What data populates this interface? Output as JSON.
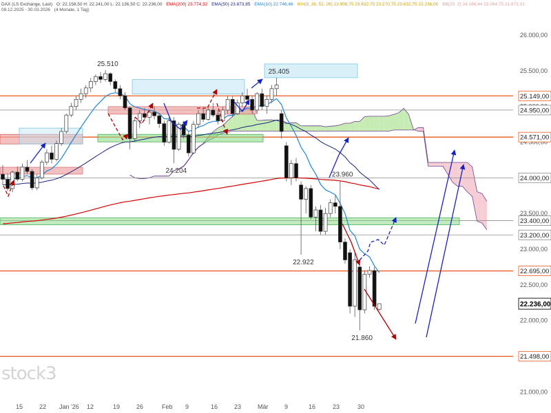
{
  "header": {
    "symbol_line": "DAX (LS Exchange, Last)",
    "ohlc": "O: 22.158,50  H: 22.241,00  L: 22.136,50  C: 22.236,00",
    "ema200": "EMA(200) 23.774,32",
    "ema50": "EMA(50) 23.873,85",
    "ema10": "EMA(10) 22.746,46",
    "ichimoku": "IKH(9, 26, 52, 26) 22.908,75  23.632,75  23.270,75  23.632,75  22.236,00",
    "bb": "BB(20, 2) 24.166,44  23.264,75  21.673,01",
    "range": "09.12.2025 - 30.03.2026",
    "interval": "(4 Monate, 1 Tag)"
  },
  "watermark": "stock3",
  "colors": {
    "ema200": "#d40000",
    "ema50": "#1a237e",
    "ema10": "#1f84d6",
    "cloud_bull": "#c6ecb4",
    "cloud_bear": "#f6cdd5",
    "orange_line": "#e8571a",
    "gray_line": "#8a8a8a",
    "green_zone": "#8edb8a",
    "red_zone": "#f0a4a4",
    "blue_zone": "#bfe6f5",
    "arrow_blue": "#1521c4",
    "arrow_red": "#b00000"
  },
  "chart_data": {
    "type": "candlestick",
    "title": "DAX (LS Exchange, Last)",
    "ylim": [
      20800,
      26300
    ],
    "y_ticks": [
      "26.000,00",
      "25.500,00",
      "25.000,00",
      "24.500,00",
      "24.000,00",
      "23.500,00",
      "23.000,00",
      "22.500,00",
      "22.000,00",
      "21.500,00",
      "21.000,00"
    ],
    "x_ticks": [
      "15",
      "22",
      "Jan '26",
      "12",
      "19",
      "26",
      "Feb",
      "9",
      "16",
      "23",
      "Mär",
      "9",
      "16",
      "23",
      "30"
    ],
    "price_levels": [
      {
        "label": "25.149,00",
        "value": 25149,
        "style": "orange"
      },
      {
        "label": "24.950,00",
        "value": 24950,
        "style": "gray"
      },
      {
        "label": "24.571,00",
        "value": 24571,
        "style": "orange"
      },
      {
        "label": "24.000,00",
        "value": 24000,
        "style": "gray"
      },
      {
        "label": "23.400,00",
        "value": 23400,
        "style": "gray"
      },
      {
        "label": "23.200,00",
        "value": 23200,
        "style": "gray"
      },
      {
        "label": "22.695,00",
        "value": 22695,
        "style": "orange"
      },
      {
        "label": "21.498,00",
        "value": 21498,
        "style": "orange"
      }
    ],
    "last_price": {
      "label": "22.236,00",
      "value": 22236
    },
    "annotations": [
      {
        "text": "25.510",
        "index": 21,
        "value": 25510
      },
      {
        "text": "25.405",
        "index": 56,
        "value": 25405
      },
      {
        "text": "24.204",
        "index": 35,
        "value": 24204
      },
      {
        "text": "23.960",
        "index": 69,
        "value": 23960
      },
      {
        "text": "22.922",
        "index": 61,
        "value": 22922
      },
      {
        "text": "21.860",
        "index": 73,
        "value": 21860
      }
    ],
    "candles": [
      {
        "o": 24050,
        "h": 24180,
        "l": 23900,
        "c": 23980
      },
      {
        "o": 23980,
        "h": 24060,
        "l": 23820,
        "c": 23850
      },
      {
        "o": 23850,
        "h": 24100,
        "l": 23800,
        "c": 24080
      },
      {
        "o": 24080,
        "h": 24160,
        "l": 23950,
        "c": 23980
      },
      {
        "o": 23980,
        "h": 24200,
        "l": 23950,
        "c": 24150
      },
      {
        "o": 24150,
        "h": 24250,
        "l": 24050,
        "c": 24090
      },
      {
        "o": 24090,
        "h": 24120,
        "l": 23830,
        "c": 23860
      },
      {
        "o": 23860,
        "h": 24050,
        "l": 23830,
        "c": 24000
      },
      {
        "o": 24000,
        "h": 24250,
        "l": 23980,
        "c": 24220
      },
      {
        "o": 24220,
        "h": 24400,
        "l": 24180,
        "c": 24350
      },
      {
        "o": 24350,
        "h": 24450,
        "l": 24200,
        "c": 24260
      },
      {
        "o": 24260,
        "h": 24520,
        "l": 24230,
        "c": 24480
      },
      {
        "o": 24480,
        "h": 24700,
        "l": 24450,
        "c": 24650
      },
      {
        "o": 24650,
        "h": 24900,
        "l": 24620,
        "c": 24880
      },
      {
        "o": 24880,
        "h": 25050,
        "l": 24850,
        "c": 25000
      },
      {
        "o": 25000,
        "h": 25150,
        "l": 24950,
        "c": 25100
      },
      {
        "o": 25100,
        "h": 25250,
        "l": 25050,
        "c": 25180
      },
      {
        "o": 25180,
        "h": 25300,
        "l": 25120,
        "c": 25260
      },
      {
        "o": 25260,
        "h": 25400,
        "l": 25200,
        "c": 25350
      },
      {
        "o": 25350,
        "h": 25450,
        "l": 25300,
        "c": 25420
      },
      {
        "o": 25420,
        "h": 25480,
        "l": 25330,
        "c": 25380
      },
      {
        "o": 25380,
        "h": 25510,
        "l": 25350,
        "c": 25460
      },
      {
        "o": 25460,
        "h": 25480,
        "l": 25300,
        "c": 25350
      },
      {
        "o": 25350,
        "h": 25380,
        "l": 25200,
        "c": 25250
      },
      {
        "o": 25250,
        "h": 25300,
        "l": 25100,
        "c": 25150
      },
      {
        "o": 25150,
        "h": 25200,
        "l": 24950,
        "c": 24980
      },
      {
        "o": 24980,
        "h": 25000,
        "l": 24400,
        "c": 24550
      },
      {
        "o": 24550,
        "h": 24850,
        "l": 24500,
        "c": 24800
      },
      {
        "o": 24800,
        "h": 24950,
        "l": 24700,
        "c": 24900
      },
      {
        "o": 24900,
        "h": 24980,
        "l": 24800,
        "c": 24850
      },
      {
        "o": 24850,
        "h": 24950,
        "l": 24750,
        "c": 24920
      },
      {
        "o": 24920,
        "h": 25000,
        "l": 24820,
        "c": 24870
      },
      {
        "o": 24870,
        "h": 24900,
        "l": 24700,
        "c": 24760
      },
      {
        "o": 24760,
        "h": 24800,
        "l": 24450,
        "c": 24500
      },
      {
        "o": 24500,
        "h": 24850,
        "l": 24480,
        "c": 24800
      },
      {
        "o": 24800,
        "h": 24850,
        "l": 24204,
        "c": 24400
      },
      {
        "o": 24400,
        "h": 24780,
        "l": 24380,
        "c": 24750
      },
      {
        "o": 24750,
        "h": 24800,
        "l": 24550,
        "c": 24600
      },
      {
        "o": 24600,
        "h": 24650,
        "l": 24300,
        "c": 24350
      },
      {
        "o": 24350,
        "h": 24800,
        "l": 24330,
        "c": 24750
      },
      {
        "o": 24750,
        "h": 24950,
        "l": 24700,
        "c": 24900
      },
      {
        "o": 24900,
        "h": 24980,
        "l": 24780,
        "c": 24820
      },
      {
        "o": 24820,
        "h": 25000,
        "l": 24800,
        "c": 24950
      },
      {
        "o": 24950,
        "h": 25050,
        "l": 24850,
        "c": 24880
      },
      {
        "o": 24880,
        "h": 24950,
        "l": 24750,
        "c": 24800
      },
      {
        "o": 24800,
        "h": 25000,
        "l": 24780,
        "c": 24950
      },
      {
        "o": 24950,
        "h": 25150,
        "l": 24900,
        "c": 25100
      },
      {
        "o": 25100,
        "h": 25150,
        "l": 24850,
        "c": 24900
      },
      {
        "o": 24900,
        "h": 25100,
        "l": 24880,
        "c": 25050
      },
      {
        "o": 25050,
        "h": 25200,
        "l": 25000,
        "c": 25150
      },
      {
        "o": 25150,
        "h": 25250,
        "l": 25050,
        "c": 25100
      },
      {
        "o": 25100,
        "h": 25150,
        "l": 24900,
        "c": 24950
      },
      {
        "o": 24950,
        "h": 25200,
        "l": 24900,
        "c": 25180
      },
      {
        "o": 25180,
        "h": 25250,
        "l": 24950,
        "c": 25000
      },
      {
        "o": 25000,
        "h": 25150,
        "l": 24900,
        "c": 25100
      },
      {
        "o": 25100,
        "h": 25300,
        "l": 25050,
        "c": 25250
      },
      {
        "o": 25250,
        "h": 25405,
        "l": 25150,
        "c": 25300
      },
      {
        "o": 24900,
        "h": 24950,
        "l": 24550,
        "c": 24650
      },
      {
        "o": 24450,
        "h": 24500,
        "l": 23950,
        "c": 24000
      },
      {
        "o": 24000,
        "h": 24250,
        "l": 23900,
        "c": 24200
      },
      {
        "o": 24200,
        "h": 24280,
        "l": 23950,
        "c": 24000
      },
      {
        "o": 23900,
        "h": 23950,
        "l": 22922,
        "c": 23700
      },
      {
        "o": 23700,
        "h": 23880,
        "l": 23500,
        "c": 23850
      },
      {
        "o": 23850,
        "h": 23900,
        "l": 23420,
        "c": 23450
      },
      {
        "o": 23450,
        "h": 23600,
        "l": 23250,
        "c": 23550
      },
      {
        "o": 23550,
        "h": 23620,
        "l": 23200,
        "c": 23250
      },
      {
        "o": 23250,
        "h": 23580,
        "l": 23200,
        "c": 23500
      },
      {
        "o": 23500,
        "h": 23700,
        "l": 23450,
        "c": 23650
      },
      {
        "o": 23650,
        "h": 23750,
        "l": 23500,
        "c": 23600
      },
      {
        "o": 23600,
        "h": 23960,
        "l": 23000,
        "c": 23100
      },
      {
        "o": 23100,
        "h": 23150,
        "l": 22800,
        "c": 22850
      },
      {
        "o": 22950,
        "h": 23000,
        "l": 22100,
        "c": 22200
      },
      {
        "o": 22200,
        "h": 22950,
        "l": 22050,
        "c": 22850
      },
      {
        "o": 22750,
        "h": 22800,
        "l": 21860,
        "c": 22150
      },
      {
        "o": 22150,
        "h": 22700,
        "l": 22100,
        "c": 22650
      },
      {
        "o": 22650,
        "h": 22760,
        "l": 22600,
        "c": 22700
      },
      {
        "o": 22700,
        "h": 22750,
        "l": 22150,
        "c": 22200
      },
      {
        "o": 22158,
        "h": 22241,
        "l": 22136,
        "c": 22236
      }
    ]
  }
}
